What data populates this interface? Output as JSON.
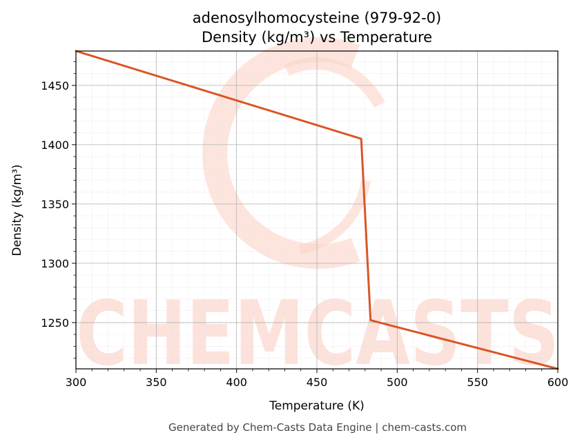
{
  "colors": {
    "line": "#d95525",
    "watermark": "#fbd3c8",
    "grid_major": "#b0b0b0",
    "grid_minor": "#e0e0e0",
    "axis": "#000000",
    "footer_text": "#444444"
  },
  "watermark": {
    "text": "CHEMCASTS"
  },
  "footer": {
    "text": "Generated by Chem-Casts Data Engine | chem-casts.com"
  },
  "chart_data": {
    "type": "line",
    "title": "adenosylhomocysteine (979-92-0)",
    "subtitle": "Density (kg/m³) vs Temperature",
    "xlabel": "Temperature (K)",
    "ylabel": "Density (kg/m³)",
    "xlim": [
      300,
      600
    ],
    "ylim": [
      1211,
      1479
    ],
    "xticks": [
      300,
      350,
      400,
      450,
      500,
      550,
      600
    ],
    "yticks": [
      1250,
      1300,
      1350,
      1400,
      1450
    ],
    "grid": true,
    "series": [
      {
        "x": [
          300,
          477.6,
          483.4,
          600
        ],
        "y": [
          1479,
          1405,
          1252,
          1211
        ]
      }
    ]
  }
}
